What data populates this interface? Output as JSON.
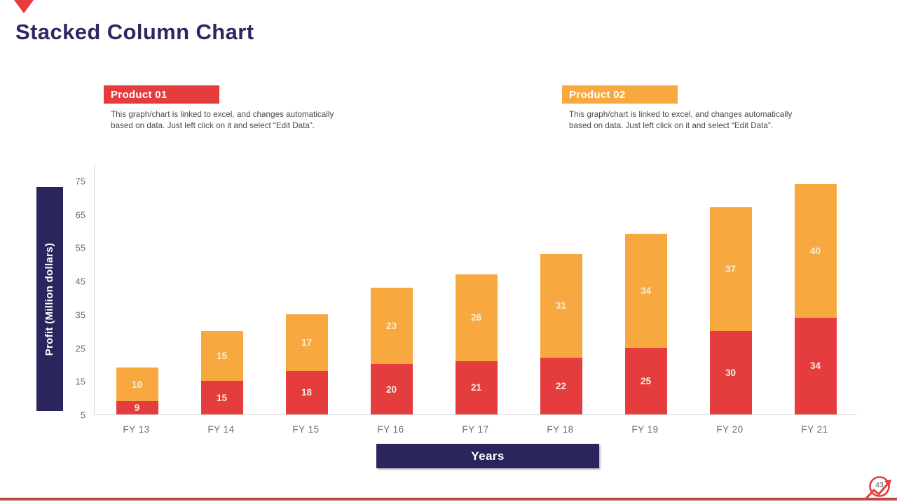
{
  "slide": {
    "title": "Stacked Column Chart",
    "page_number": "43"
  },
  "colors": {
    "navy": "#2A255C",
    "title_navy": "#2B2961",
    "red": "#E53C3E",
    "orange": "#F7A940",
    "value_label": "#F3EEE0",
    "footer_line": "#B94B48",
    "axis_gray": "#D9D9D9",
    "tick_gray": "#6e6e6e"
  },
  "legends": [
    {
      "label": "Product 01",
      "color": "#E53C3E",
      "description": "This graph/chart is linked to excel, and changes automatically\nbased on data. Just left click on it and select “Edit Data”."
    },
    {
      "label": "Product 02",
      "color": "#F7A940",
      "description": "This graph/chart is linked to excel, and changes automatically\nbased on data. Just left click on it and select “Edit Data”."
    }
  ],
  "chart_data": {
    "type": "bar",
    "stacked": true,
    "title": "Stacked Column Chart",
    "categories": [
      "FY 13",
      "FY 14",
      "FY 15",
      "FY 16",
      "FY 17",
      "FY 18",
      "FY 19",
      "FY 20",
      "FY 21"
    ],
    "series": [
      {
        "name": "Product 01",
        "color": "#E53C3E",
        "values": [
          9,
          15,
          18,
          20,
          21,
          22,
          25,
          30,
          34
        ]
      },
      {
        "name": "Product 02",
        "color": "#F7A940",
        "values": [
          10,
          15,
          17,
          23,
          26,
          31,
          34,
          37,
          40
        ]
      }
    ],
    "xlabel": "Years",
    "ylabel": "Profit  (Million dollars)",
    "ylim": [
      5,
      80
    ],
    "yticks": [
      5,
      15,
      25,
      35,
      45,
      55,
      65,
      75
    ],
    "grid": false,
    "legend_position": "top",
    "value_labels": true
  }
}
